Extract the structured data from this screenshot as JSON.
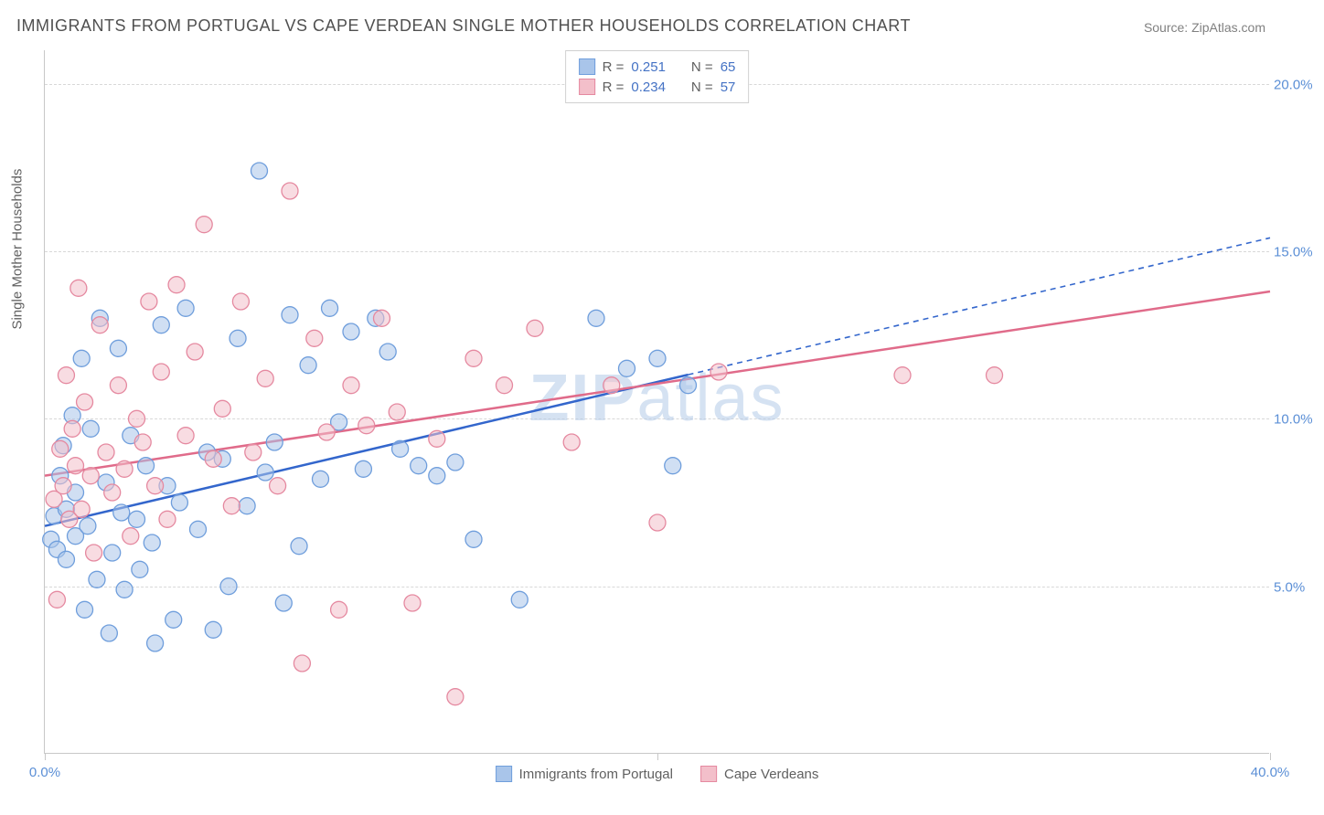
{
  "title": "IMMIGRANTS FROM PORTUGAL VS CAPE VERDEAN SINGLE MOTHER HOUSEHOLDS CORRELATION CHART",
  "source": "Source: ZipAtlas.com",
  "watermark_bold": "ZIP",
  "watermark_light": "atlas",
  "chart": {
    "type": "scatter",
    "xlim": [
      0,
      40
    ],
    "ylim": [
      0,
      21
    ],
    "x_ticks": [
      0,
      20,
      40
    ],
    "x_tick_labels": [
      "0.0%",
      "",
      "40.0%"
    ],
    "y_gridlines": [
      5,
      10,
      15,
      20
    ],
    "y_gridline_labels": [
      "5.0%",
      "10.0%",
      "15.0%",
      "20.0%"
    ],
    "y_axis_label": "Single Mother Households",
    "background_color": "#ffffff",
    "grid_color": "#d8d8d8",
    "axis_color": "#c8c8c8",
    "tick_label_color": "#5b8fd6",
    "marker_radius": 9,
    "marker_opacity": 0.55,
    "series": [
      {
        "name": "Immigrants from Portugal",
        "fill": "#a9c5ea",
        "stroke": "#6f9edc",
        "line_color": "#3366cc",
        "R": "0.251",
        "N": "65",
        "trend": {
          "x1": 0,
          "y1": 6.8,
          "x2": 40,
          "y2": 15.4,
          "solid_until_x": 21
        },
        "points": [
          [
            0.2,
            6.4
          ],
          [
            0.3,
            7.1
          ],
          [
            0.4,
            6.1
          ],
          [
            0.5,
            8.3
          ],
          [
            0.6,
            9.2
          ],
          [
            0.7,
            7.3
          ],
          [
            0.7,
            5.8
          ],
          [
            0.9,
            10.1
          ],
          [
            1.0,
            6.5
          ],
          [
            1.0,
            7.8
          ],
          [
            1.2,
            11.8
          ],
          [
            1.3,
            4.3
          ],
          [
            1.4,
            6.8
          ],
          [
            1.5,
            9.7
          ],
          [
            1.7,
            5.2
          ],
          [
            1.8,
            13.0
          ],
          [
            2.0,
            8.1
          ],
          [
            2.1,
            3.6
          ],
          [
            2.2,
            6.0
          ],
          [
            2.4,
            12.1
          ],
          [
            2.5,
            7.2
          ],
          [
            2.6,
            4.9
          ],
          [
            2.8,
            9.5
          ],
          [
            3.0,
            7.0
          ],
          [
            3.1,
            5.5
          ],
          [
            3.3,
            8.6
          ],
          [
            3.5,
            6.3
          ],
          [
            3.6,
            3.3
          ],
          [
            3.8,
            12.8
          ],
          [
            4.0,
            8.0
          ],
          [
            4.2,
            4.0
          ],
          [
            4.4,
            7.5
          ],
          [
            4.6,
            13.3
          ],
          [
            5.0,
            6.7
          ],
          [
            5.3,
            9.0
          ],
          [
            5.5,
            3.7
          ],
          [
            5.8,
            8.8
          ],
          [
            6.0,
            5.0
          ],
          [
            6.3,
            12.4
          ],
          [
            6.6,
            7.4
          ],
          [
            7.0,
            17.4
          ],
          [
            7.2,
            8.4
          ],
          [
            7.5,
            9.3
          ],
          [
            7.8,
            4.5
          ],
          [
            8.0,
            13.1
          ],
          [
            8.3,
            6.2
          ],
          [
            8.6,
            11.6
          ],
          [
            9.0,
            8.2
          ],
          [
            9.3,
            13.3
          ],
          [
            9.6,
            9.9
          ],
          [
            10.0,
            12.6
          ],
          [
            10.4,
            8.5
          ],
          [
            10.8,
            13.0
          ],
          [
            11.2,
            12.0
          ],
          [
            11.6,
            9.1
          ],
          [
            12.2,
            8.6
          ],
          [
            12.8,
            8.3
          ],
          [
            13.4,
            8.7
          ],
          [
            14.0,
            6.4
          ],
          [
            15.5,
            4.6
          ],
          [
            18.0,
            13.0
          ],
          [
            19.0,
            11.5
          ],
          [
            20.0,
            11.8
          ],
          [
            20.5,
            8.6
          ],
          [
            21.0,
            11.0
          ]
        ]
      },
      {
        "name": "Cape Verdeans",
        "fill": "#f3bfca",
        "stroke": "#e589a0",
        "line_color": "#e06b8a",
        "R": "0.234",
        "N": "57",
        "trend": {
          "x1": 0,
          "y1": 8.3,
          "x2": 40,
          "y2": 13.8,
          "solid_until_x": 40
        },
        "points": [
          [
            0.3,
            7.6
          ],
          [
            0.4,
            4.6
          ],
          [
            0.5,
            9.1
          ],
          [
            0.6,
            8.0
          ],
          [
            0.7,
            11.3
          ],
          [
            0.8,
            7.0
          ],
          [
            0.9,
            9.7
          ],
          [
            1.0,
            8.6
          ],
          [
            1.1,
            13.9
          ],
          [
            1.2,
            7.3
          ],
          [
            1.3,
            10.5
          ],
          [
            1.5,
            8.3
          ],
          [
            1.6,
            6.0
          ],
          [
            1.8,
            12.8
          ],
          [
            2.0,
            9.0
          ],
          [
            2.2,
            7.8
          ],
          [
            2.4,
            11.0
          ],
          [
            2.6,
            8.5
          ],
          [
            2.8,
            6.5
          ],
          [
            3.0,
            10.0
          ],
          [
            3.2,
            9.3
          ],
          [
            3.4,
            13.5
          ],
          [
            3.6,
            8.0
          ],
          [
            3.8,
            11.4
          ],
          [
            4.0,
            7.0
          ],
          [
            4.3,
            14.0
          ],
          [
            4.6,
            9.5
          ],
          [
            4.9,
            12.0
          ],
          [
            5.2,
            15.8
          ],
          [
            5.5,
            8.8
          ],
          [
            5.8,
            10.3
          ],
          [
            6.1,
            7.4
          ],
          [
            6.4,
            13.5
          ],
          [
            6.8,
            9.0
          ],
          [
            7.2,
            11.2
          ],
          [
            7.6,
            8.0
          ],
          [
            8.0,
            16.8
          ],
          [
            8.4,
            2.7
          ],
          [
            8.8,
            12.4
          ],
          [
            9.2,
            9.6
          ],
          [
            9.6,
            4.3
          ],
          [
            10.0,
            11.0
          ],
          [
            10.5,
            9.8
          ],
          [
            11.0,
            13.0
          ],
          [
            11.5,
            10.2
          ],
          [
            12.0,
            4.5
          ],
          [
            12.8,
            9.4
          ],
          [
            13.4,
            1.7
          ],
          [
            14.0,
            11.8
          ],
          [
            15.0,
            11.0
          ],
          [
            16.0,
            12.7
          ],
          [
            17.2,
            9.3
          ],
          [
            18.5,
            11.0
          ],
          [
            20.0,
            6.9
          ],
          [
            22.0,
            11.4
          ],
          [
            28.0,
            11.3
          ],
          [
            31.0,
            11.3
          ]
        ]
      }
    ]
  },
  "stats_legend": {
    "R_label": "R  =",
    "N_label": "N  ="
  }
}
